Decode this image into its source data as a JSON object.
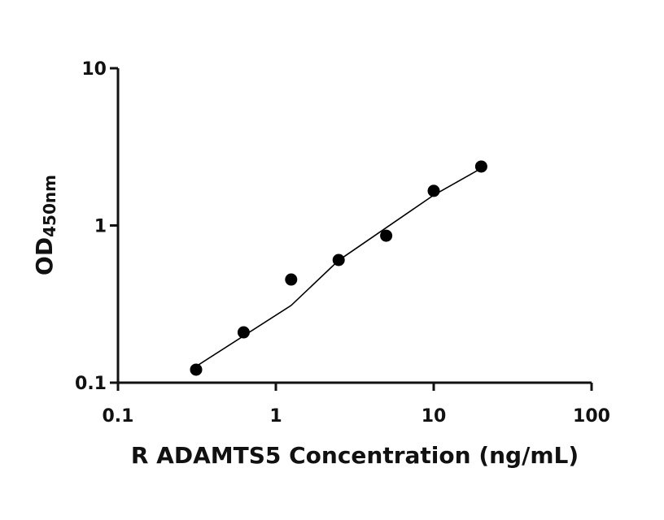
{
  "chart_data": {
    "type": "scatter",
    "x_label": "R ADAMTS5 Concentration (ng/mL)",
    "y_label": "OD",
    "y_label_sub": "450nm",
    "x": [
      0.3125,
      0.625,
      1.25,
      2.5,
      5,
      10,
      20
    ],
    "values": [
      0.121,
      0.209,
      0.453,
      0.603,
      0.861,
      1.66,
      2.37
    ],
    "fit": {
      "x": [
        0.3125,
        1.25,
        2.5,
        10,
        20
      ],
      "values": [
        0.127,
        0.31,
        0.6,
        1.56,
        2.31
      ]
    },
    "color": "#000000",
    "xlog": true,
    "ylog": true,
    "xlim": [
      0.1,
      100
    ],
    "ylim": [
      0.1,
      10
    ],
    "xticks": [
      0.1,
      1,
      10,
      100
    ],
    "yticks": [
      0.1,
      1,
      10
    ]
  }
}
